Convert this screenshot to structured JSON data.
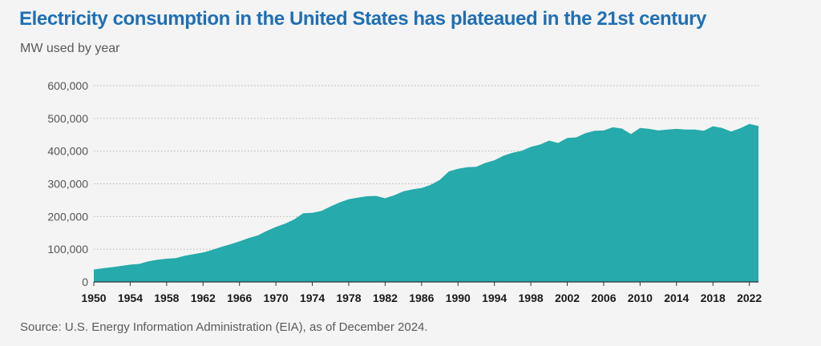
{
  "title": "Electricity consumption in the United States has plateaued in the 21st century",
  "subtitle": "MW used by year",
  "source": "Source: U.S. Energy Information Administration (EIA), as of December 2024.",
  "colors": {
    "area": "#26aaab",
    "title": "#1f6fb5",
    "grid": "#b5b5b5",
    "background": "#f4f4f4"
  },
  "chart_data": {
    "type": "area",
    "title": "Electricity consumption in the United States has plateaued in the 21st century",
    "subtitle": "MW used by year",
    "xlabel": "",
    "ylabel": "",
    "xlim": [
      1950,
      2023
    ],
    "ylim": [
      0,
      600000
    ],
    "grid": true,
    "legend": "none",
    "y_ticks": [
      0,
      100000,
      200000,
      300000,
      400000,
      500000,
      600000
    ],
    "y_tick_labels": [
      "0",
      "100,000",
      "200,000",
      "300,000",
      "400,000",
      "500,000",
      "600,000"
    ],
    "x_tick_labels": [
      "1950",
      "1954",
      "1958",
      "1962",
      "1966",
      "1970",
      "1974",
      "1978",
      "1982",
      "1986",
      "1990",
      "1994",
      "1998",
      "2002",
      "2006",
      "2010",
      "2014",
      "2018",
      "2022"
    ],
    "x": [
      1950,
      1951,
      1952,
      1953,
      1954,
      1955,
      1956,
      1957,
      1958,
      1959,
      1960,
      1961,
      1962,
      1963,
      1964,
      1965,
      1966,
      1967,
      1968,
      1969,
      1970,
      1971,
      1972,
      1973,
      1974,
      1975,
      1976,
      1977,
      1978,
      1979,
      1980,
      1981,
      1982,
      1983,
      1984,
      1985,
      1986,
      1987,
      1988,
      1989,
      1990,
      1991,
      1992,
      1993,
      1994,
      1995,
      1996,
      1997,
      1998,
      1999,
      2000,
      2001,
      2002,
      2003,
      2004,
      2005,
      2006,
      2007,
      2008,
      2009,
      2010,
      2011,
      2012,
      2013,
      2014,
      2015,
      2016,
      2017,
      2018,
      2019,
      2020,
      2021,
      2022,
      2023
    ],
    "values": [
      38000,
      42000,
      45000,
      49000,
      53000,
      55000,
      63000,
      68000,
      71000,
      73000,
      80000,
      85000,
      90000,
      98000,
      107000,
      115000,
      124000,
      134000,
      142000,
      156000,
      168000,
      178000,
      191000,
      210000,
      211000,
      217000,
      231000,
      243000,
      253000,
      258000,
      262000,
      263000,
      256000,
      265000,
      277000,
      283000,
      287000,
      297000,
      312000,
      338000,
      346000,
      351000,
      352000,
      364000,
      372000,
      386000,
      395000,
      401000,
      413000,
      420000,
      432000,
      425000,
      440000,
      442000,
      455000,
      462000,
      463000,
      473000,
      469000,
      452000,
      471000,
      468000,
      463000,
      466000,
      468000,
      466000,
      466000,
      462000,
      476000,
      471000,
      460000,
      470000,
      483000,
      477000
    ]
  }
}
